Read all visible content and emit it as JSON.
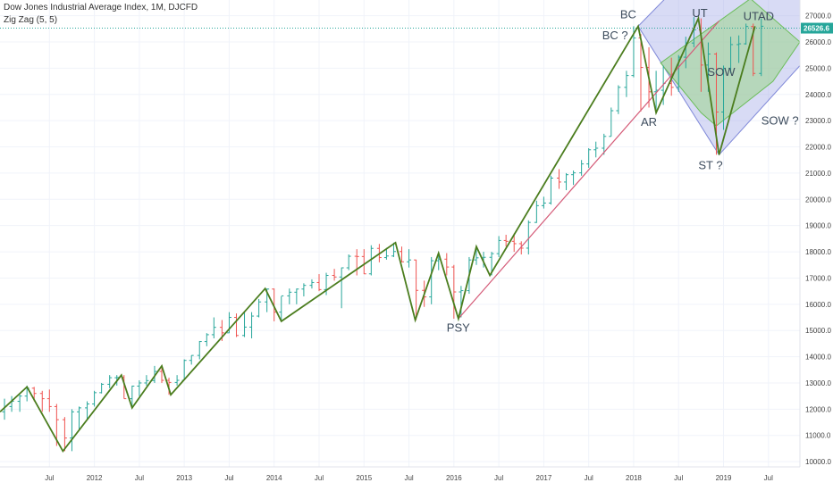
{
  "header": {
    "title": "Dow Jones Industrial Average Index, 1M, DJCFD",
    "indicator": "Zig Zag (5, 5)"
  },
  "colors": {
    "up": "#26a69a",
    "down": "#ef5350",
    "zigzag": "#4b7d1e",
    "trendline": "#d45b78",
    "pitch_green": "#9bd38a",
    "pitch_blue": "#a9b0e8",
    "last_price": "#26a69a"
  },
  "chart_data": {
    "type": "candlestick",
    "x_ticks": [
      {
        "label": "Jul",
        "t": 2011.5
      },
      {
        "label": "2012",
        "t": 2012.0
      },
      {
        "label": "Jul",
        "t": 2012.5
      },
      {
        "label": "2013",
        "t": 2013.0
      },
      {
        "label": "Jul",
        "t": 2013.5
      },
      {
        "label": "2014",
        "t": 2014.0
      },
      {
        "label": "Jul",
        "t": 2014.5
      },
      {
        "label": "2015",
        "t": 2015.0
      },
      {
        "label": "Jul",
        "t": 2015.5
      },
      {
        "label": "2016",
        "t": 2016.0
      },
      {
        "label": "Jul",
        "t": 2016.5
      },
      {
        "label": "2017",
        "t": 2017.0
      },
      {
        "label": "Jul",
        "t": 2017.5
      },
      {
        "label": "2018",
        "t": 2018.0
      },
      {
        "label": "Jul",
        "t": 2018.5
      },
      {
        "label": "2019",
        "t": 2019.0
      },
      {
        "label": "Jul",
        "t": 2019.5
      }
    ],
    "y_ticks": [
      "27000.0",
      "26000.0",
      "25000.0",
      "24000.0",
      "23000.0",
      "22000.0",
      "21000.0",
      "20000.0",
      "19000.0",
      "18000.0",
      "17000.0",
      "16000.0",
      "15000.0",
      "14000.0",
      "13000.0",
      "12000.0",
      "11000.0",
      "10000.0"
    ],
    "y_tick_values": [
      27000,
      26000,
      25000,
      24000,
      23000,
      22000,
      21000,
      20000,
      19000,
      18000,
      17000,
      16000,
      15000,
      14000,
      13000,
      12000,
      11000,
      10000
    ],
    "x_range": [
      2010.95,
      2019.85
    ],
    "y_range": [
      9800,
      27600
    ],
    "last_price": 26526.6,
    "last_price_label": "26526.6",
    "zigzag": [
      {
        "t": 2010.95,
        "v": 11900
      },
      {
        "t": 2011.25,
        "v": 12850
      },
      {
        "t": 2011.65,
        "v": 10400
      },
      {
        "t": 2012.3,
        "v": 13300
      },
      {
        "t": 2012.42,
        "v": 12050
      },
      {
        "t": 2012.75,
        "v": 13650
      },
      {
        "t": 2012.85,
        "v": 12550
      },
      {
        "t": 2013.9,
        "v": 16600
      },
      {
        "t": 2014.08,
        "v": 15350
      },
      {
        "t": 2015.35,
        "v": 18350
      },
      {
        "t": 2015.57,
        "v": 15400
      },
      {
        "t": 2015.83,
        "v": 17950
      },
      {
        "t": 2016.05,
        "v": 15450
      },
      {
        "t": 2016.25,
        "v": 18200
      },
      {
        "t": 2016.4,
        "v": 17100
      },
      {
        "t": 2018.05,
        "v": 26600
      },
      {
        "t": 2018.25,
        "v": 23300
      },
      {
        "t": 2018.72,
        "v": 26900
      },
      {
        "t": 2018.95,
        "v": 21700
      },
      {
        "t": 2019.35,
        "v": 26600
      }
    ],
    "trendline": [
      {
        "t": 2016.05,
        "v": 15450
      },
      {
        "t": 2018.95,
        "v": 26800
      }
    ],
    "channel_green": [
      {
        "t": 2018.3,
        "v": 25200
      },
      {
        "t": 2019.3,
        "v": 27650
      },
      {
        "t": 2019.85,
        "v": 26000
      },
      {
        "t": 2019.55,
        "v": 24500
      },
      {
        "t": 2018.92,
        "v": 22800
      },
      {
        "t": 2018.75,
        "v": 23300
      }
    ],
    "channel_blue": [
      {
        "t": 2018.05,
        "v": 26600
      },
      {
        "t": 2018.35,
        "v": 27650
      },
      {
        "t": 2019.85,
        "v": 27650
      },
      {
        "t": 2019.85,
        "v": 25100
      },
      {
        "t": 2018.95,
        "v": 21700
      }
    ],
    "annotations": [
      {
        "text": "BC",
        "t": 2017.85,
        "v": 26900
      },
      {
        "text": "BC ?",
        "t": 2017.65,
        "v": 26100
      },
      {
        "text": "UT",
        "t": 2018.65,
        "v": 26950
      },
      {
        "text": "UTAD",
        "t": 2019.22,
        "v": 26830
      },
      {
        "text": "SOW",
        "t": 2018.82,
        "v": 24700
      },
      {
        "text": "AR",
        "t": 2018.08,
        "v": 22800
      },
      {
        "text": "SOW ?",
        "t": 2019.42,
        "v": 22850
      },
      {
        "text": "ST ?",
        "t": 2018.72,
        "v": 21150
      },
      {
        "text": "PSY",
        "t": 2015.92,
        "v": 14950
      }
    ],
    "candles": [
      {
        "t": 2011.0,
        "o": 11900,
        "h": 12400,
        "l": 11600,
        "c": 12100
      },
      {
        "t": 2011.08,
        "o": 12100,
        "h": 12500,
        "l": 11900,
        "c": 12300
      },
      {
        "t": 2011.17,
        "o": 12300,
        "h": 12550,
        "l": 11900,
        "c": 12500
      },
      {
        "t": 2011.25,
        "o": 12500,
        "h": 12900,
        "l": 12300,
        "c": 12800
      },
      {
        "t": 2011.33,
        "o": 12800,
        "h": 12850,
        "l": 12300,
        "c": 12600
      },
      {
        "t": 2011.42,
        "o": 12600,
        "h": 12700,
        "l": 11900,
        "c": 12400
      },
      {
        "t": 2011.5,
        "o": 12400,
        "h": 12750,
        "l": 11900,
        "c": 12100
      },
      {
        "t": 2011.58,
        "o": 12100,
        "h": 12200,
        "l": 10600,
        "c": 11600
      },
      {
        "t": 2011.67,
        "o": 11600,
        "h": 11700,
        "l": 10400,
        "c": 10900
      },
      {
        "t": 2011.75,
        "o": 10900,
        "h": 12000,
        "l": 10400,
        "c": 11900
      },
      {
        "t": 2011.83,
        "o": 11900,
        "h": 12100,
        "l": 11200,
        "c": 12050
      },
      {
        "t": 2011.92,
        "o": 12050,
        "h": 12300,
        "l": 11600,
        "c": 12200
      },
      {
        "t": 2012.0,
        "o": 12200,
        "h": 12700,
        "l": 12100,
        "c": 12630
      },
      {
        "t": 2012.08,
        "o": 12630,
        "h": 13000,
        "l": 12600,
        "c": 12950
      },
      {
        "t": 2012.17,
        "o": 12950,
        "h": 13300,
        "l": 12800,
        "c": 13200
      },
      {
        "t": 2012.25,
        "o": 13200,
        "h": 13300,
        "l": 12900,
        "c": 13210
      },
      {
        "t": 2012.33,
        "o": 13210,
        "h": 13300,
        "l": 12400,
        "c": 12400
      },
      {
        "t": 2012.42,
        "o": 12400,
        "h": 12900,
        "l": 12050,
        "c": 12880
      },
      {
        "t": 2012.5,
        "o": 12880,
        "h": 13100,
        "l": 12500,
        "c": 13000
      },
      {
        "t": 2012.58,
        "o": 13000,
        "h": 13300,
        "l": 12900,
        "c": 13090
      },
      {
        "t": 2012.67,
        "o": 13090,
        "h": 13650,
        "l": 13000,
        "c": 13440
      },
      {
        "t": 2012.75,
        "o": 13440,
        "h": 13600,
        "l": 13000,
        "c": 13100
      },
      {
        "t": 2012.83,
        "o": 13100,
        "h": 13200,
        "l": 12550,
        "c": 13020
      },
      {
        "t": 2012.92,
        "o": 13020,
        "h": 13300,
        "l": 12900,
        "c": 13100
      },
      {
        "t": 2013.0,
        "o": 13100,
        "h": 13900,
        "l": 13100,
        "c": 13860
      },
      {
        "t": 2013.08,
        "o": 13860,
        "h": 14050,
        "l": 13700,
        "c": 14050
      },
      {
        "t": 2013.17,
        "o": 14050,
        "h": 14600,
        "l": 13900,
        "c": 14580
      },
      {
        "t": 2013.25,
        "o": 14580,
        "h": 14900,
        "l": 14400,
        "c": 14840
      },
      {
        "t": 2013.33,
        "o": 14840,
        "h": 15500,
        "l": 14700,
        "c": 15120
      },
      {
        "t": 2013.42,
        "o": 15120,
        "h": 15400,
        "l": 14600,
        "c": 14910
      },
      {
        "t": 2013.5,
        "o": 14910,
        "h": 15700,
        "l": 14900,
        "c": 15500
      },
      {
        "t": 2013.58,
        "o": 15500,
        "h": 15650,
        "l": 14750,
        "c": 14810
      },
      {
        "t": 2013.67,
        "o": 14810,
        "h": 15700,
        "l": 14750,
        "c": 15130
      },
      {
        "t": 2013.75,
        "o": 15130,
        "h": 15700,
        "l": 14700,
        "c": 15550
      },
      {
        "t": 2013.83,
        "o": 15550,
        "h": 16200,
        "l": 15500,
        "c": 16090
      },
      {
        "t": 2013.92,
        "o": 16090,
        "h": 16600,
        "l": 15700,
        "c": 16580
      },
      {
        "t": 2014.0,
        "o": 16580,
        "h": 16600,
        "l": 15350,
        "c": 15700
      },
      {
        "t": 2014.08,
        "o": 15700,
        "h": 16300,
        "l": 15350,
        "c": 16320
      },
      {
        "t": 2014.17,
        "o": 16320,
        "h": 16600,
        "l": 16000,
        "c": 16460
      },
      {
        "t": 2014.25,
        "o": 16460,
        "h": 16600,
        "l": 16000,
        "c": 16580
      },
      {
        "t": 2014.33,
        "o": 16580,
        "h": 16800,
        "l": 16300,
        "c": 16720
      },
      {
        "t": 2014.42,
        "o": 16720,
        "h": 16950,
        "l": 16600,
        "c": 16830
      },
      {
        "t": 2014.5,
        "o": 16830,
        "h": 17150,
        "l": 16500,
        "c": 16560
      },
      {
        "t": 2014.58,
        "o": 16560,
        "h": 17200,
        "l": 16350,
        "c": 17100
      },
      {
        "t": 2014.67,
        "o": 17100,
        "h": 17350,
        "l": 16900,
        "c": 17040
      },
      {
        "t": 2014.75,
        "o": 17040,
        "h": 17400,
        "l": 15850,
        "c": 17390
      },
      {
        "t": 2014.83,
        "o": 17390,
        "h": 17900,
        "l": 17300,
        "c": 17830
      },
      {
        "t": 2014.92,
        "o": 17830,
        "h": 18100,
        "l": 17100,
        "c": 17820
      },
      {
        "t": 2015.0,
        "o": 17820,
        "h": 18100,
        "l": 17150,
        "c": 17160
      },
      {
        "t": 2015.08,
        "o": 17160,
        "h": 18250,
        "l": 17100,
        "c": 18130
      },
      {
        "t": 2015.17,
        "o": 18130,
        "h": 18300,
        "l": 17600,
        "c": 17780
      },
      {
        "t": 2015.25,
        "o": 17780,
        "h": 18150,
        "l": 17700,
        "c": 17840
      },
      {
        "t": 2015.33,
        "o": 17840,
        "h": 18350,
        "l": 17800,
        "c": 18010
      },
      {
        "t": 2015.42,
        "o": 18010,
        "h": 18200,
        "l": 17600,
        "c": 17620
      },
      {
        "t": 2015.5,
        "o": 17620,
        "h": 18100,
        "l": 17400,
        "c": 17690
      },
      {
        "t": 2015.58,
        "o": 17690,
        "h": 17700,
        "l": 15400,
        "c": 16530
      },
      {
        "t": 2015.67,
        "o": 16530,
        "h": 16900,
        "l": 15900,
        "c": 16280
      },
      {
        "t": 2015.75,
        "o": 16280,
        "h": 17800,
        "l": 16000,
        "c": 17660
      },
      {
        "t": 2015.83,
        "o": 17660,
        "h": 17950,
        "l": 17300,
        "c": 17720
      },
      {
        "t": 2015.92,
        "o": 17720,
        "h": 17950,
        "l": 17100,
        "c": 17420
      },
      {
        "t": 2016.0,
        "o": 17420,
        "h": 17500,
        "l": 15450,
        "c": 16470
      },
      {
        "t": 2016.08,
        "o": 16470,
        "h": 16700,
        "l": 15500,
        "c": 16520
      },
      {
        "t": 2016.17,
        "o": 16520,
        "h": 17800,
        "l": 16400,
        "c": 17690
      },
      {
        "t": 2016.25,
        "o": 17690,
        "h": 18200,
        "l": 17500,
        "c": 17770
      },
      {
        "t": 2016.33,
        "o": 17770,
        "h": 18000,
        "l": 17400,
        "c": 17790
      },
      {
        "t": 2016.42,
        "o": 17790,
        "h": 18000,
        "l": 17100,
        "c": 17930
      },
      {
        "t": 2016.5,
        "o": 17930,
        "h": 18600,
        "l": 17800,
        "c": 18430
      },
      {
        "t": 2016.58,
        "o": 18430,
        "h": 18650,
        "l": 18200,
        "c": 18400
      },
      {
        "t": 2016.67,
        "o": 18400,
        "h": 18700,
        "l": 18000,
        "c": 18310
      },
      {
        "t": 2016.75,
        "o": 18310,
        "h": 18400,
        "l": 17900,
        "c": 18140
      },
      {
        "t": 2016.83,
        "o": 18140,
        "h": 19200,
        "l": 17900,
        "c": 19120
      },
      {
        "t": 2016.92,
        "o": 19120,
        "h": 19950,
        "l": 19100,
        "c": 19760
      },
      {
        "t": 2017.0,
        "o": 19760,
        "h": 20100,
        "l": 19650,
        "c": 19860
      },
      {
        "t": 2017.08,
        "o": 19860,
        "h": 20900,
        "l": 19800,
        "c": 20810
      },
      {
        "t": 2017.17,
        "o": 20810,
        "h": 21150,
        "l": 20400,
        "c": 20660
      },
      {
        "t": 2017.25,
        "o": 20660,
        "h": 21000,
        "l": 20350,
        "c": 20940
      },
      {
        "t": 2017.33,
        "o": 20940,
        "h": 21100,
        "l": 20550,
        "c": 21010
      },
      {
        "t": 2017.42,
        "o": 21010,
        "h": 21500,
        "l": 20900,
        "c": 21350
      },
      {
        "t": 2017.5,
        "o": 21350,
        "h": 21950,
        "l": 21200,
        "c": 21890
      },
      {
        "t": 2017.58,
        "o": 21890,
        "h": 22200,
        "l": 21600,
        "c": 21950
      },
      {
        "t": 2017.67,
        "o": 21950,
        "h": 22500,
        "l": 21700,
        "c": 22400
      },
      {
        "t": 2017.75,
        "o": 22400,
        "h": 23500,
        "l": 22400,
        "c": 23380
      },
      {
        "t": 2017.83,
        "o": 23380,
        "h": 24350,
        "l": 23250,
        "c": 24270
      },
      {
        "t": 2017.92,
        "o": 24270,
        "h": 24900,
        "l": 23900,
        "c": 24720
      },
      {
        "t": 2018.0,
        "o": 24720,
        "h": 26600,
        "l": 24650,
        "c": 26150
      },
      {
        "t": 2018.08,
        "o": 26150,
        "h": 26300,
        "l": 23350,
        "c": 25030
      },
      {
        "t": 2018.17,
        "o": 25030,
        "h": 25800,
        "l": 23500,
        "c": 24100
      },
      {
        "t": 2018.25,
        "o": 24100,
        "h": 24900,
        "l": 23350,
        "c": 24160
      },
      {
        "t": 2018.33,
        "o": 24160,
        "h": 25100,
        "l": 23600,
        "c": 24420
      },
      {
        "t": 2018.42,
        "o": 24420,
        "h": 25400,
        "l": 23950,
        "c": 24270
      },
      {
        "t": 2018.5,
        "o": 24270,
        "h": 25500,
        "l": 24100,
        "c": 25420
      },
      {
        "t": 2018.58,
        "o": 25420,
        "h": 26200,
        "l": 25000,
        "c": 25960
      },
      {
        "t": 2018.67,
        "o": 25960,
        "h": 26950,
        "l": 25800,
        "c": 26460
      },
      {
        "t": 2018.75,
        "o": 26460,
        "h": 26900,
        "l": 24100,
        "c": 25120
      },
      {
        "t": 2018.83,
        "o": 25120,
        "h": 25980,
        "l": 24100,
        "c": 25540
      },
      {
        "t": 2018.92,
        "o": 25540,
        "h": 25600,
        "l": 21700,
        "c": 23330
      },
      {
        "t": 2019.0,
        "o": 23330,
        "h": 25100,
        "l": 22650,
        "c": 25000
      },
      {
        "t": 2019.08,
        "o": 25000,
        "h": 26200,
        "l": 24800,
        "c": 25900
      },
      {
        "t": 2019.17,
        "o": 25900,
        "h": 26250,
        "l": 25200,
        "c": 25930
      },
      {
        "t": 2019.25,
        "o": 25930,
        "h": 26700,
        "l": 25900,
        "c": 26590
      },
      {
        "t": 2019.33,
        "o": 26590,
        "h": 26700,
        "l": 24700,
        "c": 24800
      },
      {
        "t": 2019.42,
        "o": 24800,
        "h": 26900,
        "l": 24700,
        "c": 26600
      }
    ]
  }
}
